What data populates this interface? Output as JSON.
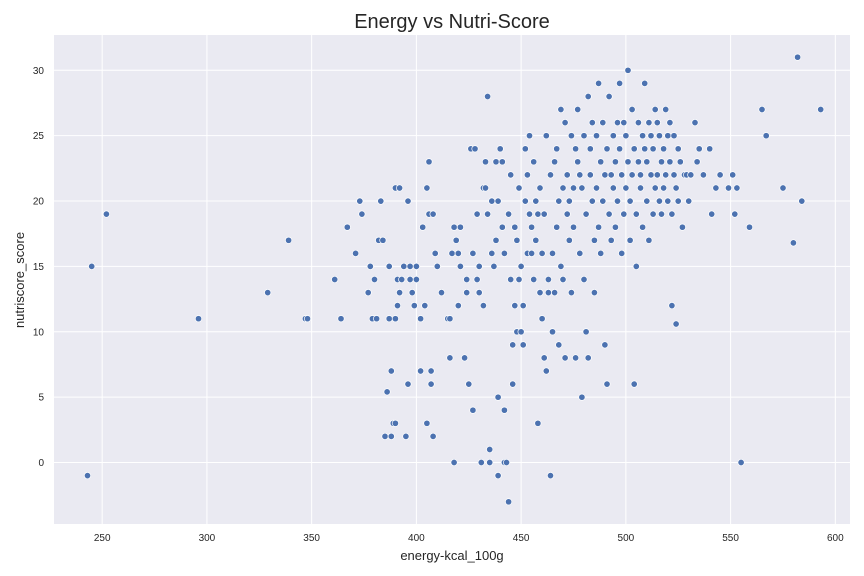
{
  "chart_data": {
    "type": "scatter",
    "title": "Energy vs Nutri-Score",
    "xlabel": "energy-kcal_100g",
    "ylabel": "nutriscore_score",
    "xlim": [
      227,
      607
    ],
    "ylim": [
      -4.7,
      32.7
    ],
    "x_ticks": [
      250,
      300,
      350,
      400,
      450,
      500,
      550,
      600
    ],
    "y_ticks": [
      0,
      5,
      10,
      15,
      20,
      25,
      30
    ],
    "grid": true,
    "legend": "none",
    "colors": {
      "point": "#4c72b0",
      "background": "#eaeaf2",
      "grid": "#ffffff"
    },
    "points": [
      [
        243,
        -1
      ],
      [
        245,
        15
      ],
      [
        252,
        19
      ],
      [
        296,
        11
      ],
      [
        329,
        13
      ],
      [
        339,
        17
      ],
      [
        347,
        11
      ],
      [
        348,
        11
      ],
      [
        361,
        14
      ],
      [
        364,
        11
      ],
      [
        367,
        18
      ],
      [
        371,
        16
      ],
      [
        373,
        20
      ],
      [
        374,
        19
      ],
      [
        377,
        13
      ],
      [
        378,
        15
      ],
      [
        379,
        11
      ],
      [
        380,
        14
      ],
      [
        381,
        11
      ],
      [
        382,
        17
      ],
      [
        383,
        20
      ],
      [
        384,
        17
      ],
      [
        385,
        2
      ],
      [
        386,
        5.4
      ],
      [
        387,
        11
      ],
      [
        387,
        15
      ],
      [
        388,
        7
      ],
      [
        388,
        2
      ],
      [
        389,
        3
      ],
      [
        390,
        3
      ],
      [
        390,
        11
      ],
      [
        390,
        21
      ],
      [
        391,
        14
      ],
      [
        391,
        12
      ],
      [
        392,
        21
      ],
      [
        392,
        13
      ],
      [
        393,
        14
      ],
      [
        394,
        15
      ],
      [
        395,
        2
      ],
      [
        396,
        6
      ],
      [
        396,
        20
      ],
      [
        397,
        14
      ],
      [
        397,
        15
      ],
      [
        398,
        13
      ],
      [
        399,
        12
      ],
      [
        400,
        14
      ],
      [
        400,
        15
      ],
      [
        402,
        11
      ],
      [
        402,
        7
      ],
      [
        403,
        18
      ],
      [
        404,
        12
      ],
      [
        405,
        21
      ],
      [
        405,
        3
      ],
      [
        406,
        19
      ],
      [
        406,
        23
      ],
      [
        407,
        7
      ],
      [
        407,
        6
      ],
      [
        408,
        19
      ],
      [
        408,
        2
      ],
      [
        409,
        16
      ],
      [
        410,
        15
      ],
      [
        412,
        13
      ],
      [
        415,
        11
      ],
      [
        416,
        11
      ],
      [
        416,
        8
      ],
      [
        417,
        16
      ],
      [
        418,
        0
      ],
      [
        418,
        18
      ],
      [
        419,
        17
      ],
      [
        420,
        16
      ],
      [
        420,
        12
      ],
      [
        421,
        18
      ],
      [
        421,
        15
      ],
      [
        423,
        8
      ],
      [
        424,
        13
      ],
      [
        424,
        14
      ],
      [
        425,
        6
      ],
      [
        426,
        24
      ],
      [
        427,
        16
      ],
      [
        427,
        4
      ],
      [
        428,
        24
      ],
      [
        429,
        19
      ],
      [
        429,
        14
      ],
      [
        430,
        15
      ],
      [
        430,
        13
      ],
      [
        431,
        0
      ],
      [
        432,
        12
      ],
      [
        432,
        21
      ],
      [
        433,
        21
      ],
      [
        433,
        23
      ],
      [
        434,
        28
      ],
      [
        434,
        19
      ],
      [
        435,
        1
      ],
      [
        435,
        0
      ],
      [
        436,
        16
      ],
      [
        436,
        20
      ],
      [
        437,
        15
      ],
      [
        438,
        23
      ],
      [
        438,
        17
      ],
      [
        439,
        20
      ],
      [
        439,
        5
      ],
      [
        439,
        -1
      ],
      [
        440,
        24
      ],
      [
        441,
        18
      ],
      [
        441,
        23
      ],
      [
        442,
        16
      ],
      [
        442,
        0
      ],
      [
        442,
        4
      ],
      [
        443,
        0
      ],
      [
        444,
        19
      ],
      [
        444,
        -3
      ],
      [
        445,
        22
      ],
      [
        445,
        14
      ],
      [
        446,
        6
      ],
      [
        446,
        9
      ],
      [
        447,
        12
      ],
      [
        447,
        18
      ],
      [
        448,
        17
      ],
      [
        448,
        10
      ],
      [
        449,
        14
      ],
      [
        449,
        21
      ],
      [
        450,
        15
      ],
      [
        450,
        10
      ],
      [
        451,
        12
      ],
      [
        451,
        9
      ],
      [
        452,
        24
      ],
      [
        452,
        20
      ],
      [
        453,
        22
      ],
      [
        453,
        16
      ],
      [
        454,
        19
      ],
      [
        454,
        25
      ],
      [
        455,
        16
      ],
      [
        455,
        18
      ],
      [
        456,
        14
      ],
      [
        456,
        23
      ],
      [
        457,
        20
      ],
      [
        457,
        17
      ],
      [
        458,
        19
      ],
      [
        458,
        3
      ],
      [
        459,
        21
      ],
      [
        459,
        13
      ],
      [
        460,
        11
      ],
      [
        460,
        16
      ],
      [
        461,
        8
      ],
      [
        461,
        19
      ],
      [
        462,
        7
      ],
      [
        462,
        25
      ],
      [
        463,
        14
      ],
      [
        463,
        13
      ],
      [
        464,
        -1
      ],
      [
        464,
        22
      ],
      [
        465,
        16
      ],
      [
        465,
        10
      ],
      [
        466,
        13
      ],
      [
        466,
        23
      ],
      [
        467,
        24
      ],
      [
        467,
        18
      ],
      [
        468,
        9
      ],
      [
        468,
        20
      ],
      [
        469,
        27
      ],
      [
        469,
        15
      ],
      [
        470,
        21
      ],
      [
        470,
        14
      ],
      [
        471,
        8
      ],
      [
        471,
        26
      ],
      [
        472,
        22
      ],
      [
        472,
        19
      ],
      [
        473,
        20
      ],
      [
        473,
        17
      ],
      [
        474,
        25
      ],
      [
        474,
        13
      ],
      [
        475,
        21
      ],
      [
        475,
        18
      ],
      [
        476,
        8
      ],
      [
        476,
        24
      ],
      [
        477,
        27
      ],
      [
        477,
        23
      ],
      [
        478,
        22
      ],
      [
        478,
        16
      ],
      [
        479,
        5
      ],
      [
        479,
        21
      ],
      [
        480,
        25
      ],
      [
        480,
        14
      ],
      [
        481,
        19
      ],
      [
        481,
        10
      ],
      [
        482,
        28
      ],
      [
        482,
        8
      ],
      [
        483,
        24
      ],
      [
        483,
        22
      ],
      [
        484,
        20
      ],
      [
        484,
        26
      ],
      [
        485,
        17
      ],
      [
        485,
        13
      ],
      [
        486,
        25
      ],
      [
        486,
        21
      ],
      [
        487,
        29
      ],
      [
        487,
        18
      ],
      [
        488,
        23
      ],
      [
        488,
        16
      ],
      [
        489,
        20
      ],
      [
        489,
        26
      ],
      [
        490,
        9
      ],
      [
        490,
        22
      ],
      [
        491,
        24
      ],
      [
        491,
        6
      ],
      [
        492,
        19
      ],
      [
        492,
        28
      ],
      [
        493,
        22
      ],
      [
        493,
        17
      ],
      [
        494,
        25
      ],
      [
        494,
        21
      ],
      [
        495,
        23
      ],
      [
        495,
        18
      ],
      [
        496,
        26
      ],
      [
        496,
        20
      ],
      [
        497,
        29
      ],
      [
        497,
        24
      ],
      [
        498,
        16
      ],
      [
        498,
        22
      ],
      [
        499,
        19
      ],
      [
        499,
        26
      ],
      [
        500,
        21
      ],
      [
        500,
        25
      ],
      [
        501,
        30
      ],
      [
        501,
        23
      ],
      [
        502,
        17
      ],
      [
        502,
        20
      ],
      [
        503,
        22
      ],
      [
        503,
        27
      ],
      [
        504,
        6
      ],
      [
        504,
        24
      ],
      [
        505,
        19
      ],
      [
        505,
        15
      ],
      [
        506,
        23
      ],
      [
        506,
        26
      ],
      [
        507,
        22
      ],
      [
        507,
        21
      ],
      [
        508,
        25
      ],
      [
        508,
        18
      ],
      [
        509,
        24
      ],
      [
        509,
        29
      ],
      [
        510,
        20
      ],
      [
        510,
        23
      ],
      [
        511,
        17
      ],
      [
        511,
        26
      ],
      [
        512,
        22
      ],
      [
        512,
        25
      ],
      [
        513,
        19
      ],
      [
        513,
        24
      ],
      [
        514,
        21
      ],
      [
        514,
        27
      ],
      [
        515,
        26
      ],
      [
        515,
        22
      ],
      [
        516,
        20
      ],
      [
        516,
        25
      ],
      [
        517,
        23
      ],
      [
        517,
        19
      ],
      [
        518,
        24
      ],
      [
        518,
        21
      ],
      [
        519,
        27
      ],
      [
        519,
        22
      ],
      [
        520,
        20
      ],
      [
        520,
        25
      ],
      [
        521,
        23
      ],
      [
        521,
        26
      ],
      [
        522,
        19
      ],
      [
        522,
        12
      ],
      [
        523,
        22
      ],
      [
        523,
        25
      ],
      [
        524,
        10.6
      ],
      [
        524,
        21
      ],
      [
        525,
        24
      ],
      [
        525,
        20
      ],
      [
        526,
        23
      ],
      [
        527,
        18
      ],
      [
        528,
        22
      ],
      [
        529,
        22
      ],
      [
        530,
        20
      ],
      [
        531,
        22
      ],
      [
        533,
        26
      ],
      [
        534,
        23
      ],
      [
        535,
        24
      ],
      [
        537,
        22
      ],
      [
        540,
        24
      ],
      [
        541,
        19
      ],
      [
        543,
        21
      ],
      [
        545,
        22
      ],
      [
        549,
        21
      ],
      [
        551,
        22
      ],
      [
        552,
        19
      ],
      [
        553,
        21
      ],
      [
        555,
        0
      ],
      [
        559,
        18
      ],
      [
        565,
        27
      ],
      [
        567,
        25
      ],
      [
        575,
        21
      ],
      [
        580,
        16.8
      ],
      [
        582,
        31
      ],
      [
        584,
        20
      ],
      [
        593,
        27
      ]
    ]
  }
}
